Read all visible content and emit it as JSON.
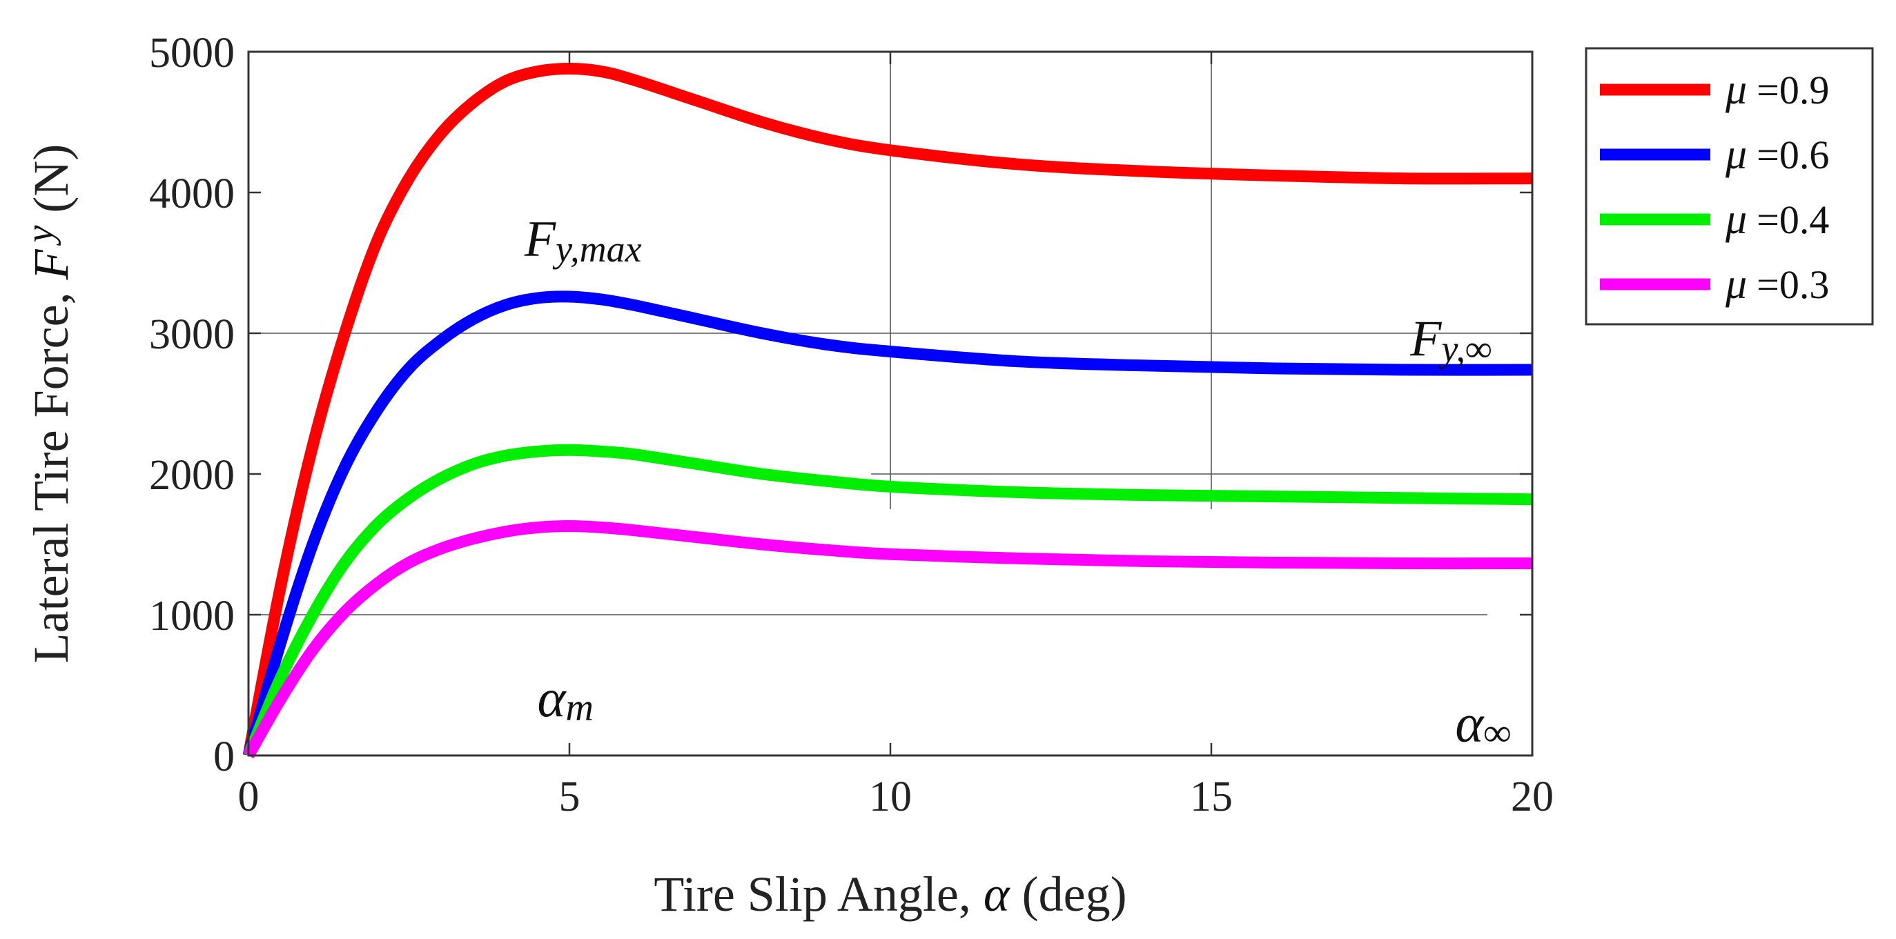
{
  "chart_data": {
    "type": "line",
    "title": "",
    "xlabel_pre": "Tire Slip Angle, ",
    "xlabel_sym": "α",
    "xlabel_post": " (deg)",
    "ylabel_pre": "Lateral Tire Force, ",
    "ylabel_sym": "F",
    "ylabel_sub": "y",
    "ylabel_post": " (N)",
    "xlim": [
      0,
      20
    ],
    "ylim": [
      0,
      5000
    ],
    "xticks": [
      0,
      5,
      10,
      15,
      20
    ],
    "xtick_labels": [
      "0",
      "5",
      "10",
      "15",
      "20"
    ],
    "yticks": [
      0,
      1000,
      2000,
      3000,
      4000,
      5000
    ],
    "ytick_labels": [
      "0",
      "1000",
      "2000",
      "3000",
      "4000",
      "5000"
    ],
    "legend_position": "outside-right",
    "series": [
      {
        "name": "0.9",
        "color": "#ff0000",
        "x": [
          0,
          0.5,
          1,
          1.5,
          2,
          2.5,
          3,
          3.5,
          4,
          4.5,
          5,
          5.5,
          6,
          7,
          8,
          9,
          10,
          12,
          14,
          16,
          18,
          20
        ],
        "y": [
          0,
          1200,
          2200,
          3000,
          3650,
          4100,
          4420,
          4640,
          4790,
          4860,
          4880,
          4860,
          4800,
          4650,
          4500,
          4380,
          4300,
          4200,
          4150,
          4120,
          4100,
          4100
        ]
      },
      {
        "name": "0.6",
        "color": "#0000ff",
        "x": [
          0,
          0.5,
          1,
          1.5,
          2,
          2.5,
          3,
          3.5,
          4,
          4.5,
          5,
          5.5,
          6,
          7,
          8,
          9,
          10,
          12,
          14,
          16,
          18,
          20
        ],
        "y": [
          0,
          800,
          1500,
          2050,
          2450,
          2750,
          2950,
          3100,
          3200,
          3250,
          3260,
          3240,
          3200,
          3100,
          3000,
          2920,
          2870,
          2800,
          2770,
          2750,
          2740,
          2740
        ]
      },
      {
        "name": "0.4",
        "color": "#00ee00",
        "x": [
          0,
          0.5,
          1,
          1.5,
          2,
          2.5,
          3,
          3.5,
          4,
          4.5,
          5,
          5.5,
          6,
          7,
          8,
          9,
          10,
          12,
          14,
          16,
          18,
          20
        ],
        "y": [
          0,
          550,
          1000,
          1370,
          1640,
          1830,
          1970,
          2070,
          2130,
          2160,
          2170,
          2160,
          2140,
          2070,
          2000,
          1950,
          1910,
          1870,
          1850,
          1840,
          1830,
          1820
        ]
      },
      {
        "name": "0.3",
        "color": "#ff00ff",
        "x": [
          0,
          0.5,
          1,
          1.5,
          2,
          2.5,
          3,
          3.5,
          4,
          4.5,
          5,
          5.5,
          6,
          7,
          8,
          9,
          10,
          12,
          14,
          16,
          18,
          20
        ],
        "y": [
          0,
          400,
          750,
          1020,
          1220,
          1370,
          1470,
          1540,
          1590,
          1620,
          1630,
          1620,
          1600,
          1550,
          1500,
          1460,
          1430,
          1400,
          1380,
          1370,
          1365,
          1365
        ]
      }
    ],
    "legend_symbol": "μ",
    "legend_prefix": " = ",
    "annotations": {
      "fymax": {
        "main": "F",
        "sub": "y,max",
        "x": 4.3,
        "y": 3550
      },
      "fyinf": {
        "main": "F",
        "sub": "y,∞",
        "x": 18.1,
        "y": 2840
      },
      "alpham": {
        "main": "α",
        "sub": "m",
        "x": 4.5,
        "y": 280
      },
      "alphainf": {
        "main": "α",
        "sub": "∞",
        "x": 18.8,
        "y": 100
      }
    },
    "grid_segments": [
      {
        "orient": "h",
        "value": 3000,
        "from": 0,
        "to": 20
      },
      {
        "orient": "h",
        "value": 2000,
        "from": 9.7,
        "to": 20
      },
      {
        "orient": "h",
        "value": 1000,
        "from": 0,
        "to": 19.3
      },
      {
        "orient": "v",
        "value": 10,
        "from": 1750,
        "to": 5000
      },
      {
        "orient": "v",
        "value": 15,
        "from": 1750,
        "to": 5000
      }
    ]
  }
}
